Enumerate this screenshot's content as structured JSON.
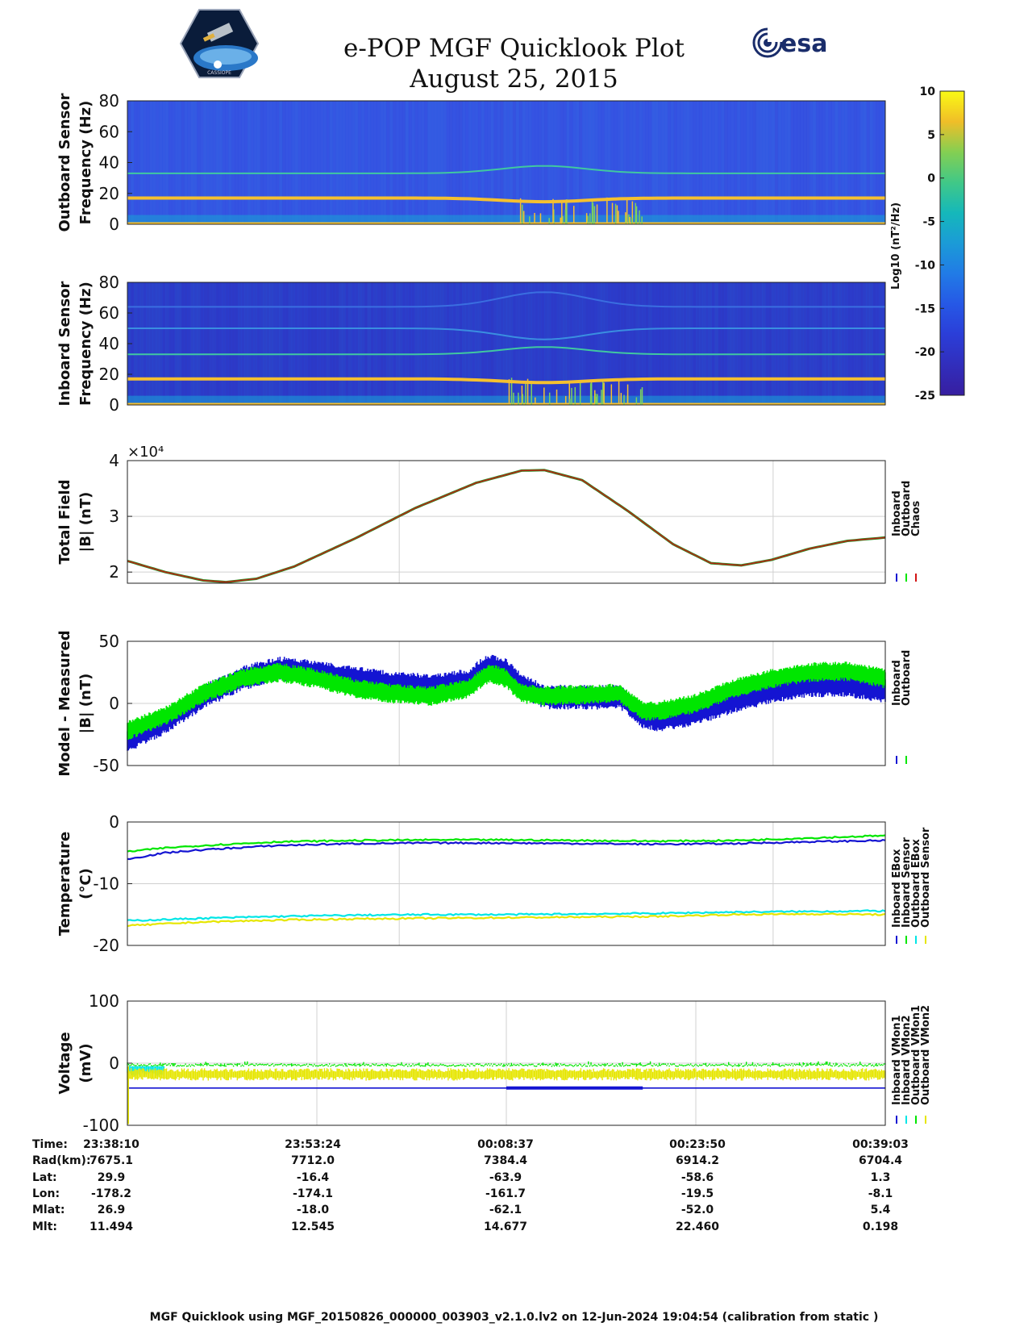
{
  "header": {
    "title": "e-POP MGF Quicklook Plot",
    "date": "August 25, 2015",
    "logo_left": "cassiope-mission-logo",
    "logo_right_text": "esa",
    "logo_left_text": "CASSIOPE"
  },
  "footer": {
    "text": "MGF Quicklook using MGF_20150826_000000_003903_v2.1.0.lv2 on 12-Jun-2024 19:04:54 (calibration from static )"
  },
  "colors": {
    "inboard": "#1414d2",
    "outboard": "#00e600",
    "chaos": "#d21414",
    "inboard_sensor": "#00e6e6",
    "outboard_sensor": "#e6e600",
    "grid": "#d0d0d0"
  },
  "geo": {
    "rows": [
      {
        "label": "Time:",
        "values": [
          "23:38:10",
          "23:53:24",
          "00:08:37",
          "00:23:50",
          "00:39:03"
        ]
      },
      {
        "label": "Rad(km):",
        "values": [
          "7675.1",
          "7712.0",
          "7384.4",
          "6914.2",
          "6704.4"
        ]
      },
      {
        "label": "Lat:",
        "values": [
          "29.9",
          "-16.4",
          "-63.9",
          "-58.6",
          "1.3"
        ]
      },
      {
        "label": "Lon:",
        "values": [
          "-178.2",
          "-174.1",
          "-161.7",
          "-19.5",
          "-8.1"
        ]
      },
      {
        "label": "Mlat:",
        "values": [
          "26.9",
          "-18.0",
          "-62.1",
          "-52.0",
          "5.4"
        ]
      },
      {
        "label": "Mlt:",
        "values": [
          "11.494",
          "12.545",
          "14.677",
          "22.460",
          "0.198"
        ]
      }
    ]
  },
  "chart_data": [
    {
      "type": "heatmap",
      "name": "outboard-spectrogram",
      "ylabel": [
        "Outboard Sensor",
        "Frequency (Hz)"
      ],
      "yticks": [
        0,
        20,
        40,
        60,
        80
      ],
      "ylim": [
        0,
        80
      ],
      "lines_hz": [
        {
          "f": 17,
          "color": "#f5c030"
        },
        {
          "f": 33,
          "color": "#40c8a0"
        }
      ]
    },
    {
      "type": "heatmap",
      "name": "inboard-spectrogram",
      "ylabel": [
        "Inboard Sensor",
        "Frequency (Hz)"
      ],
      "yticks": [
        0,
        20,
        40,
        60,
        80
      ],
      "ylim": [
        0,
        80
      ],
      "lines_hz": [
        {
          "f": 17,
          "color": "#f5c030"
        },
        {
          "f": 33,
          "color": "#40c8a0"
        },
        {
          "f": 50,
          "color": "#3a8ee0"
        },
        {
          "f": 64,
          "color": "#3a6ee0"
        }
      ]
    },
    {
      "type": "colorbar",
      "name": "spectrogram-colorbar",
      "ticks": [
        "10",
        "5",
        "0",
        "-5",
        "-10",
        "-15",
        "-20",
        "-25"
      ],
      "range": [
        -25,
        10
      ],
      "label": "Log10 (nT²/Hz)"
    },
    {
      "type": "line",
      "name": "total-field",
      "ylabel": [
        "Total Field",
        "|B| (nT)"
      ],
      "exponent": "×10⁴",
      "yticks": [
        2,
        3,
        4
      ],
      "ylim": [
        1.8,
        4.0
      ],
      "x": [
        0,
        0.05,
        0.1,
        0.13,
        0.17,
        0.22,
        0.3,
        0.38,
        0.46,
        0.52,
        0.55,
        0.6,
        0.66,
        0.72,
        0.77,
        0.81,
        0.85,
        0.9,
        0.95,
        1.0
      ],
      "y": [
        2.2,
        2.0,
        1.85,
        1.82,
        1.88,
        2.1,
        2.6,
        3.15,
        3.6,
        3.82,
        3.83,
        3.65,
        3.1,
        2.5,
        2.16,
        2.12,
        2.22,
        2.42,
        2.56,
        2.62
      ],
      "legend": [
        "Inboard",
        "Outboard",
        "Chaos"
      ]
    },
    {
      "type": "line",
      "name": "model-measured",
      "ylabel": [
        "Model - Measured",
        "|B| (nT)"
      ],
      "yticks": [
        -50,
        0,
        50
      ],
      "ylim": [
        -50,
        50
      ],
      "x": [
        0,
        0.05,
        0.1,
        0.15,
        0.2,
        0.25,
        0.3,
        0.35,
        0.4,
        0.45,
        0.47,
        0.48,
        0.5,
        0.52,
        0.55,
        0.6,
        0.65,
        0.68,
        0.7,
        0.75,
        0.8,
        0.85,
        0.9,
        0.95,
        1.0
      ],
      "inboard": [
        -30,
        -15,
        5,
        20,
        28,
        25,
        20,
        16,
        14,
        18,
        28,
        30,
        26,
        15,
        5,
        5,
        5,
        -10,
        -13,
        -8,
        2,
        10,
        15,
        15,
        10
      ],
      "outboard": [
        -22,
        -10,
        8,
        20,
        25,
        20,
        12,
        8,
        6,
        12,
        22,
        24,
        20,
        8,
        6,
        7,
        8,
        -6,
        -6,
        0,
        12,
        20,
        25,
        26,
        20
      ],
      "legend": [
        "Inboard",
        "Outboard"
      ]
    },
    {
      "type": "line",
      "name": "temperature",
      "ylabel": [
        "Temperature",
        "(°C)"
      ],
      "yticks": [
        -20,
        -10,
        0
      ],
      "ylim": [
        -20,
        0
      ],
      "x": [
        0,
        0.05,
        0.1,
        0.2,
        0.3,
        0.4,
        0.5,
        0.6,
        0.7,
        0.8,
        0.9,
        1.0
      ],
      "series": [
        {
          "name": "Inboard EBox",
          "color": "inboard",
          "values": [
            -6,
            -5,
            -4.5,
            -3.8,
            -3.5,
            -3.4,
            -3.4,
            -3.5,
            -3.6,
            -3.5,
            -3.2,
            -3.0
          ]
        },
        {
          "name": "Inboard Sensor",
          "color": "outboard",
          "values": [
            -4.8,
            -4.2,
            -3.8,
            -3.2,
            -3.0,
            -2.9,
            -2.9,
            -3.0,
            -3.1,
            -3.0,
            -2.6,
            -2.2
          ]
        },
        {
          "name": "Outboard EBox",
          "color": "inboard_sensor",
          "values": [
            -16,
            -15.8,
            -15.6,
            -15.3,
            -15.1,
            -15.0,
            -15.0,
            -14.9,
            -14.8,
            -14.6,
            -14.5,
            -14.4
          ]
        },
        {
          "name": "Outboard Sensor",
          "color": "outboard_sensor",
          "values": [
            -16.8,
            -16.5,
            -16.2,
            -15.9,
            -15.7,
            -15.6,
            -15.5,
            -15.4,
            -15.3,
            -15.0,
            -14.9,
            -15.0
          ]
        }
      ],
      "legend": [
        "Inboard EBox",
        "Inboard Sensor",
        "Outboard EBox",
        "Outboard Sensor"
      ]
    },
    {
      "type": "line",
      "name": "voltage",
      "ylabel": [
        "Voltage",
        "(mV)"
      ],
      "yticks": [
        -100,
        0,
        100
      ],
      "ylim": [
        -100,
        100
      ],
      "series": [
        {
          "name": "Inboard VMon1",
          "color": "inboard",
          "values": [
            -40
          ]
        },
        {
          "name": "Inboard VMon2",
          "color": "inboard_sensor",
          "values": [
            -8
          ]
        },
        {
          "name": "Outboard VMon1",
          "color": "outboard",
          "values": [
            -3
          ]
        },
        {
          "name": "Outboard VMon2",
          "color": "outboard_sensor",
          "values": [
            -15
          ]
        }
      ],
      "legend": [
        "Inboard VMon1",
        "Inboard VMon2",
        "Outboard VMon1",
        "Outboard VMon2"
      ]
    }
  ]
}
